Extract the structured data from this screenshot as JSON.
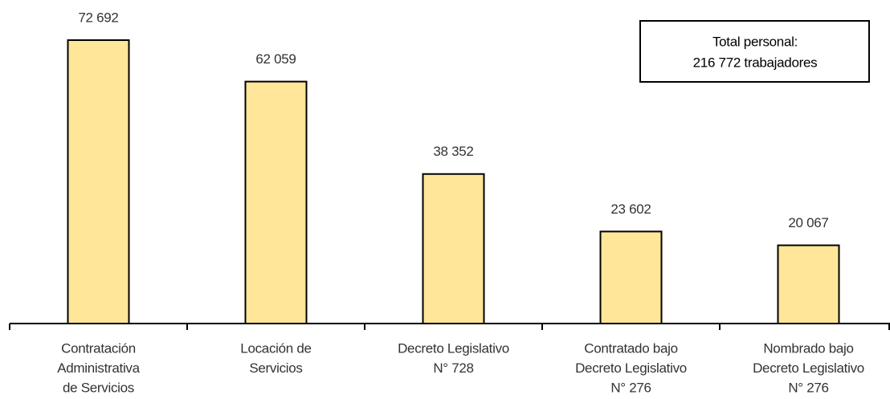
{
  "chart_data": {
    "type": "bar",
    "categories": [
      [
        "Contratación",
        "Administrativa",
        "de Servicios"
      ],
      [
        "Locación de",
        "Servicios"
      ],
      [
        "Decreto Legislativo",
        "N° 728"
      ],
      [
        "Contratado bajo",
        "Decreto Legislativo",
        "N° 276"
      ],
      [
        "Nombrado bajo",
        "Decreto Legislativo",
        "N° 276"
      ]
    ],
    "values": [
      72692,
      62059,
      38352,
      23602,
      20067
    ],
    "value_labels": [
      "72 692",
      "62 059",
      "38 352",
      "23 602",
      "20 067"
    ],
    "color": "#ffe699",
    "ylim": [
      0,
      80000
    ],
    "annotation": [
      "Total personal:",
      "216 772 trabajadores"
    ]
  }
}
